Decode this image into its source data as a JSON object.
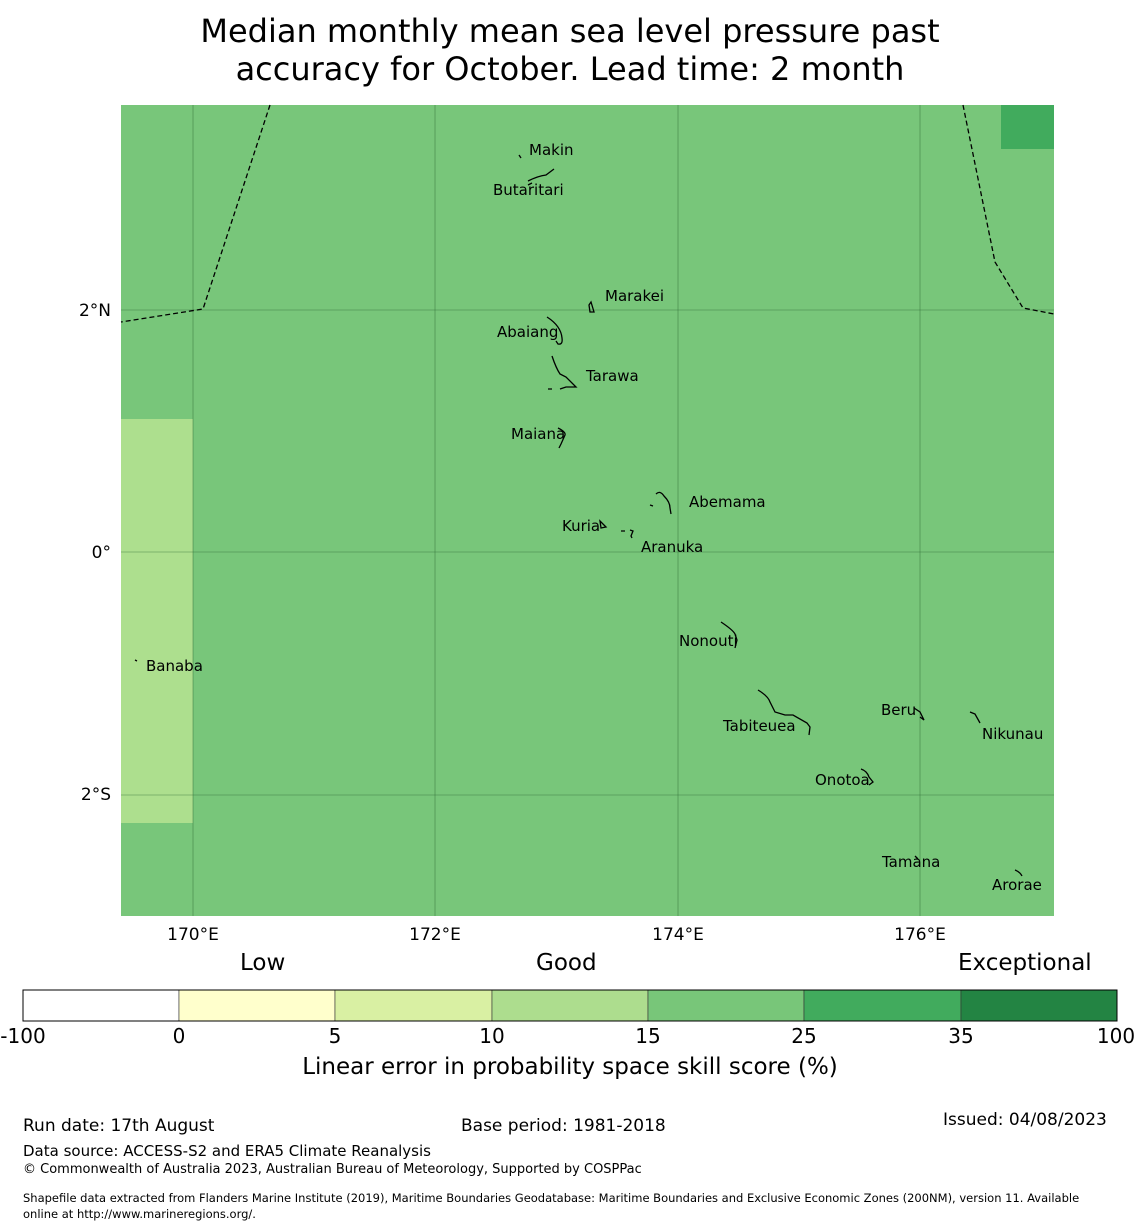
{
  "title_line1": "Median monthly mean sea level pressure past",
  "title_line2": "accuracy for October. Lead time: 2 month",
  "map": {
    "lat_labels": [
      "2°N",
      "0°",
      "2°S"
    ],
    "lon_labels": [
      "170°E",
      "172°E",
      "174°E",
      "176°E"
    ],
    "colors": {
      "skill_15_25": "#78c67a",
      "skill_10_15": "#addf8e",
      "skill_25_35": "#41ab5d"
    },
    "islands": [
      "Makin",
      "Butaritari",
      "Marakei",
      "Abaiang",
      "Tarawa",
      "Maiana",
      "Abemama",
      "Kuria",
      "Aranuka",
      "Banaba",
      "Nonouti",
      "Beru",
      "Tabiteuea",
      "Nikunau",
      "Onotoa",
      "Tamana",
      "Arorae"
    ]
  },
  "colorbar": {
    "category_low": "Low",
    "category_good": "Good",
    "category_exceptional": "Exceptional",
    "ticks": [
      "-100",
      "0",
      "5",
      "10",
      "15",
      "25",
      "35",
      "100"
    ],
    "colors": [
      "#ffffff",
      "#ffffcc",
      "#d9f0a3",
      "#addd8e",
      "#78c679",
      "#41ab5d",
      "#238443"
    ],
    "title": "Linear error in probability space skill score (%)"
  },
  "footer": {
    "run_date": "Run date: 17th August",
    "base_period": "Base period: 1981-2018",
    "issued": "Issued: 04/08/2023",
    "data_source": "Data source: ACCESS-S2 and ERA5 Climate Reanalysis",
    "copyright": "© Commonwealth of Australia 2023, Australian Bureau of Meteorology, Supported by COSPPac",
    "shapefile_line1": "Shapefile data extracted from Flanders Marine Institute (2019), Maritime Boundaries Geodatabase: Maritime Boundaries and Exclusive Economic Zones (200NM), version 11. Available",
    "shapefile_line2": "online at http://www.marineregions.org/."
  }
}
